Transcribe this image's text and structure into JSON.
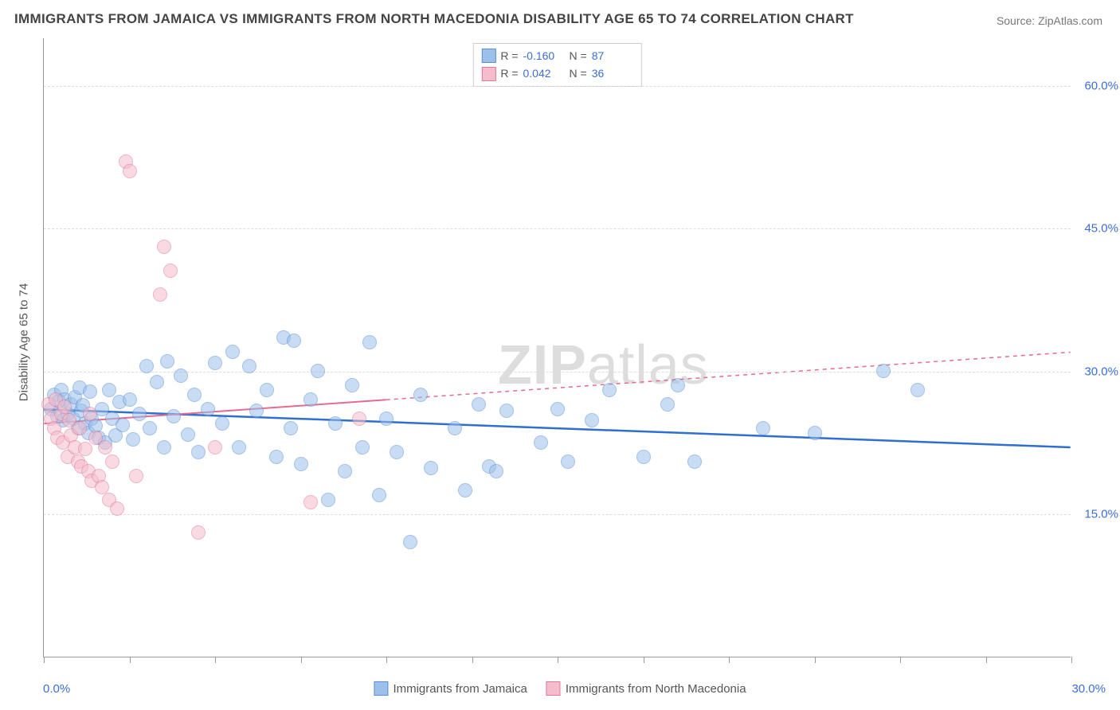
{
  "title": "IMMIGRANTS FROM JAMAICA VS IMMIGRANTS FROM NORTH MACEDONIA DISABILITY AGE 65 TO 74 CORRELATION CHART",
  "source": "Source: ZipAtlas.com",
  "y_axis_title": "Disability Age 65 to 74",
  "watermark_bold": "ZIP",
  "watermark_rest": "atlas",
  "chart": {
    "type": "scatter",
    "xlim": [
      0,
      30
    ],
    "ylim": [
      0,
      65
    ],
    "x_ticks": [
      0,
      2.5,
      5,
      7.5,
      10,
      12.5,
      15,
      17.5,
      20,
      22.5,
      25,
      27.5,
      30
    ],
    "x_tick_labels": {
      "left": "0.0%",
      "right": "30.0%"
    },
    "y_gridlines": [
      15,
      30,
      45,
      60
    ],
    "y_tick_labels": [
      "15.0%",
      "30.0%",
      "45.0%",
      "60.0%"
    ],
    "background_color": "#ffffff",
    "grid_color": "#dddddd",
    "axis_color": "#999999",
    "point_radius": 9,
    "point_opacity": 0.55,
    "series": [
      {
        "name": "Immigrants from Jamaica",
        "fill": "#9cc0ea",
        "stroke": "#5a8fd6",
        "R": "-0.160",
        "N": "87",
        "trend": {
          "x1": 0,
          "y1": 26.0,
          "x2": 30,
          "y2": 22.0,
          "color": "#2f6fd0",
          "width": 2.5,
          "dash": "none",
          "extrapolate_dash": false
        },
        "points": [
          [
            0.2,
            26
          ],
          [
            0.3,
            27.5
          ],
          [
            0.4,
            25.2
          ],
          [
            0.45,
            26.8
          ],
          [
            0.5,
            28
          ],
          [
            0.55,
            24.8
          ],
          [
            0.6,
            27
          ],
          [
            0.7,
            25.5
          ],
          [
            0.8,
            26.5
          ],
          [
            0.85,
            25
          ],
          [
            0.9,
            27.2
          ],
          [
            1.0,
            24
          ],
          [
            1.05,
            28.2
          ],
          [
            1.1,
            25.8
          ],
          [
            1.15,
            26.4
          ],
          [
            1.2,
            24.5
          ],
          [
            1.3,
            23.5
          ],
          [
            1.35,
            27.8
          ],
          [
            1.4,
            25
          ],
          [
            1.5,
            24.2
          ],
          [
            1.6,
            23
          ],
          [
            1.7,
            26
          ],
          [
            1.8,
            22.5
          ],
          [
            1.9,
            28
          ],
          [
            2.0,
            25
          ],
          [
            2.1,
            23.2
          ],
          [
            2.2,
            26.7
          ],
          [
            2.3,
            24.3
          ],
          [
            2.5,
            27
          ],
          [
            2.6,
            22.8
          ],
          [
            2.8,
            25.5
          ],
          [
            3.0,
            30.5
          ],
          [
            3.1,
            24
          ],
          [
            3.3,
            28.8
          ],
          [
            3.5,
            22
          ],
          [
            3.6,
            31
          ],
          [
            3.8,
            25.2
          ],
          [
            4.0,
            29.5
          ],
          [
            4.2,
            23.3
          ],
          [
            4.4,
            27.5
          ],
          [
            4.5,
            21.5
          ],
          [
            4.8,
            26
          ],
          [
            5.0,
            30.8
          ],
          [
            5.2,
            24.5
          ],
          [
            5.5,
            32
          ],
          [
            5.7,
            22
          ],
          [
            6.0,
            30.5
          ],
          [
            6.2,
            25.8
          ],
          [
            6.5,
            28
          ],
          [
            6.8,
            21
          ],
          [
            7.0,
            33.5
          ],
          [
            7.2,
            24
          ],
          [
            7.3,
            33.2
          ],
          [
            7.5,
            20.2
          ],
          [
            7.8,
            27
          ],
          [
            8.0,
            30
          ],
          [
            8.3,
            16.5
          ],
          [
            8.5,
            24.5
          ],
          [
            8.8,
            19.5
          ],
          [
            9.0,
            28.5
          ],
          [
            9.3,
            22
          ],
          [
            9.5,
            33
          ],
          [
            9.8,
            17
          ],
          [
            10.0,
            25
          ],
          [
            10.3,
            21.5
          ],
          [
            10.7,
            12
          ],
          [
            11.0,
            27.5
          ],
          [
            11.3,
            19.8
          ],
          [
            12.0,
            24
          ],
          [
            12.3,
            17.5
          ],
          [
            12.7,
            26.5
          ],
          [
            13.0,
            20
          ],
          [
            13.2,
            19.5
          ],
          [
            13.5,
            25.8
          ],
          [
            14.5,
            22.5
          ],
          [
            15.0,
            26
          ],
          [
            15.3,
            20.5
          ],
          [
            16.0,
            24.8
          ],
          [
            16.5,
            28
          ],
          [
            17.5,
            21
          ],
          [
            18.2,
            26.5
          ],
          [
            18.5,
            28.5
          ],
          [
            19.0,
            20.5
          ],
          [
            21.0,
            24
          ],
          [
            22.5,
            23.5
          ],
          [
            24.5,
            30
          ],
          [
            25.5,
            28
          ]
        ]
      },
      {
        "name": "Immigrants from North Macedonia",
        "fill": "#f5bccb",
        "stroke": "#e07a99",
        "R": "0.042",
        "N": "36",
        "trend": {
          "x1": 0,
          "y1": 24.5,
          "x2": 10,
          "y2": 27.0,
          "color": "#e76a8f",
          "width": 2,
          "dash": "none",
          "extrapolate_to": 30,
          "extrapolate_y": 32,
          "extrapolate_dash": "5,5"
        },
        "points": [
          [
            0.15,
            26.5
          ],
          [
            0.2,
            25
          ],
          [
            0.3,
            24
          ],
          [
            0.35,
            27
          ],
          [
            0.4,
            23
          ],
          [
            0.5,
            25.5
          ],
          [
            0.55,
            22.5
          ],
          [
            0.6,
            26.2
          ],
          [
            0.7,
            21
          ],
          [
            0.75,
            24.8
          ],
          [
            0.8,
            23.2
          ],
          [
            0.9,
            22
          ],
          [
            1.0,
            20.5
          ],
          [
            1.05,
            24
          ],
          [
            1.1,
            20
          ],
          [
            1.2,
            21.8
          ],
          [
            1.3,
            19.5
          ],
          [
            1.35,
            25.5
          ],
          [
            1.4,
            18.5
          ],
          [
            1.5,
            23
          ],
          [
            1.6,
            19
          ],
          [
            1.7,
            17.8
          ],
          [
            1.8,
            22
          ],
          [
            1.9,
            16.5
          ],
          [
            2.0,
            20.5
          ],
          [
            2.15,
            15.5
          ],
          [
            2.4,
            52
          ],
          [
            2.5,
            51
          ],
          [
            2.7,
            19
          ],
          [
            3.4,
            38
          ],
          [
            3.5,
            43
          ],
          [
            3.7,
            40.5
          ],
          [
            4.5,
            13
          ],
          [
            5.0,
            22
          ],
          [
            7.8,
            16.2
          ],
          [
            9.2,
            25
          ]
        ]
      }
    ]
  },
  "legend_bottom": [
    {
      "label": "Immigrants from Jamaica",
      "fill": "#9cc0ea",
      "stroke": "#5a8fd6"
    },
    {
      "label": "Immigrants from North Macedonia",
      "fill": "#f5bccb",
      "stroke": "#e07a99"
    }
  ]
}
